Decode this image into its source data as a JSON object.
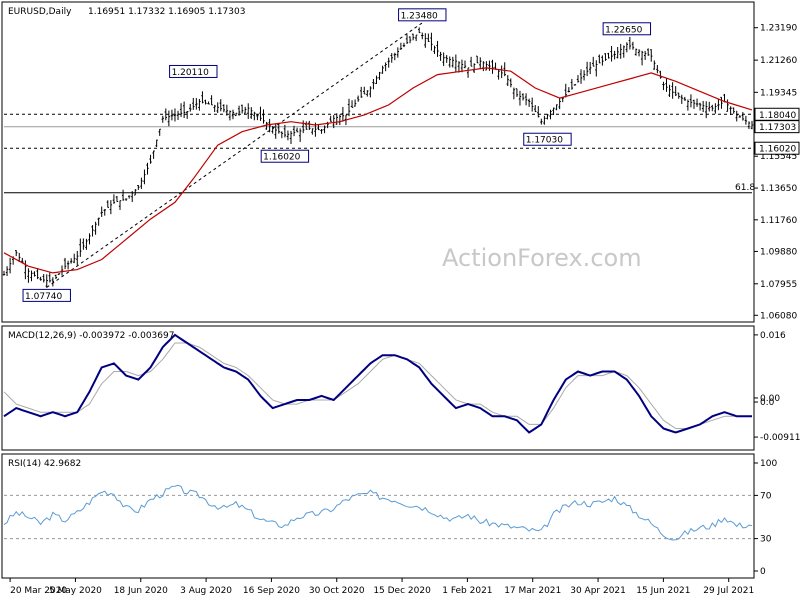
{
  "chart_data": [
    {
      "type": "candlestick",
      "title": "EURUSD,Daily",
      "ohlc_label": "1.16951 1.17332 1.16905 1.17303",
      "y_range": [
        1.058,
        1.246
      ],
      "y_ticks": [
        "1.23190",
        "1.21260",
        "1.19345",
        "1.17415",
        "1.15545",
        "1.13650",
        "1.11760",
        "1.09880",
        "1.07955",
        "1.06080"
      ],
      "x_ticks": [
        "20 Mar 2020",
        "5 May 2020",
        "18 Jun 2020",
        "3 Aug 2020",
        "16 Sep 2020",
        "30 Oct 2020",
        "15 Dec 2020",
        "1 Feb 2021",
        "17 Mar 2021",
        "30 Apr 2021",
        "15 Jun 2021",
        "29 Jul 2021"
      ],
      "price_boxes": [
        {
          "label": "1.18040",
          "value": 1.1804
        },
        {
          "label": "1.17303",
          "value": 1.17303
        },
        {
          "label": "1.16020",
          "value": 1.1602
        }
      ],
      "horizontal_lines": [
        {
          "value": 1.1804,
          "style": "dashed"
        },
        {
          "value": 1.173,
          "style": "solid-gray"
        },
        {
          "value": 1.1602,
          "style": "dashed"
        },
        {
          "value": 1.1337,
          "style": "solid",
          "label": "61.8"
        }
      ],
      "annotations": [
        {
          "label": "1.23480",
          "x_index": 137,
          "value": 1.2348
        },
        {
          "label": "1.20110",
          "x_index": 62,
          "value": 1.2011
        },
        {
          "label": "1.22650",
          "x_index": 204,
          "value": 1.2265
        },
        {
          "label": "1.17030",
          "x_index": 178,
          "value": 1.1703
        },
        {
          "label": "1.16020",
          "x_index": 92,
          "value": 1.1602
        },
        {
          "label": "1.07740",
          "x_index": 14,
          "value": 1.0774
        }
      ],
      "trendline": {
        "from": {
          "x_index": 14,
          "value": 1.0774
        },
        "to": {
          "x_index": 137,
          "value": 1.2348
        },
        "style": "dashed"
      },
      "ma_series_name": "",
      "ma_series": [
        [
          0,
          1.098
        ],
        [
          8,
          1.09
        ],
        [
          16,
          1.086
        ],
        [
          24,
          1.088
        ],
        [
          32,
          1.094
        ],
        [
          40,
          1.106
        ],
        [
          48,
          1.118
        ],
        [
          56,
          1.128
        ],
        [
          62,
          1.142
        ],
        [
          70,
          1.162
        ],
        [
          78,
          1.17
        ],
        [
          86,
          1.174
        ],
        [
          94,
          1.176
        ],
        [
          102,
          1.174
        ],
        [
          110,
          1.176
        ],
        [
          118,
          1.18
        ],
        [
          126,
          1.186
        ],
        [
          134,
          1.196
        ],
        [
          142,
          1.204
        ],
        [
          150,
          1.206
        ],
        [
          158,
          1.208
        ],
        [
          166,
          1.206
        ],
        [
          174,
          1.196
        ],
        [
          182,
          1.19
        ],
        [
          190,
          1.194
        ],
        [
          198,
          1.198
        ],
        [
          206,
          1.202
        ],
        [
          212,
          1.205
        ],
        [
          220,
          1.2
        ],
        [
          228,
          1.194
        ],
        [
          236,
          1.188
        ],
        [
          245,
          1.183
        ]
      ],
      "price_path": [
        [
          0,
          1.085
        ],
        [
          4,
          1.098
        ],
        [
          8,
          1.087
        ],
        [
          12,
          1.082
        ],
        [
          16,
          1.081
        ],
        [
          20,
          1.09
        ],
        [
          24,
          1.096
        ],
        [
          28,
          1.108
        ],
        [
          32,
          1.122
        ],
        [
          36,
          1.128
        ],
        [
          40,
          1.13
        ],
        [
          44,
          1.137
        ],
        [
          48,
          1.152
        ],
        [
          52,
          1.178
        ],
        [
          56,
          1.18
        ],
        [
          60,
          1.182
        ],
        [
          64,
          1.188
        ],
        [
          68,
          1.186
        ],
        [
          72,
          1.183
        ],
        [
          76,
          1.181
        ],
        [
          80,
          1.184
        ],
        [
          84,
          1.178
        ],
        [
          88,
          1.172
        ],
        [
          92,
          1.168
        ],
        [
          96,
          1.17
        ],
        [
          100,
          1.172
        ],
        [
          104,
          1.171
        ],
        [
          108,
          1.178
        ],
        [
          112,
          1.18
        ],
        [
          116,
          1.189
        ],
        [
          120,
          1.196
        ],
        [
          124,
          1.208
        ],
        [
          128,
          1.216
        ],
        [
          132,
          1.223
        ],
        [
          136,
          1.229
        ],
        [
          140,
          1.222
        ],
        [
          144,
          1.214
        ],
        [
          148,
          1.212
        ],
        [
          152,
          1.208
        ],
        [
          156,
          1.212
        ],
        [
          160,
          1.208
        ],
        [
          164,
          1.204
        ],
        [
          168,
          1.192
        ],
        [
          172,
          1.188
        ],
        [
          176,
          1.176
        ],
        [
          180,
          1.184
        ],
        [
          184,
          1.192
        ],
        [
          188,
          1.2
        ],
        [
          192,
          1.208
        ],
        [
          196,
          1.212
        ],
        [
          200,
          1.216
        ],
        [
          204,
          1.222
        ],
        [
          208,
          1.218
        ],
        [
          212,
          1.215
        ],
        [
          216,
          1.198
        ],
        [
          220,
          1.192
        ],
        [
          224,
          1.188
        ],
        [
          228,
          1.186
        ],
        [
          232,
          1.184
        ],
        [
          236,
          1.188
        ],
        [
          240,
          1.18
        ],
        [
          245,
          1.174
        ]
      ]
    },
    {
      "type": "line",
      "title": "MACD(12,26,9) -0.003972 -0.003697",
      "y_range": [
        -0.0118,
        0.0172
      ],
      "y_ticks": [
        "0.016",
        "0.00",
        "0.0",
        "-0.009116"
      ],
      "macd": [
        [
          0,
          -0.004
        ],
        [
          4,
          -0.002
        ],
        [
          8,
          -0.003
        ],
        [
          12,
          -0.004
        ],
        [
          16,
          -0.003
        ],
        [
          20,
          -0.004
        ],
        [
          24,
          -0.003
        ],
        [
          28,
          0.002
        ],
        [
          32,
          0.008
        ],
        [
          36,
          0.009
        ],
        [
          40,
          0.006
        ],
        [
          44,
          0.005
        ],
        [
          48,
          0.008
        ],
        [
          52,
          0.013
        ],
        [
          56,
          0.016
        ],
        [
          60,
          0.014
        ],
        [
          64,
          0.012
        ],
        [
          68,
          0.01
        ],
        [
          72,
          0.008
        ],
        [
          76,
          0.007
        ],
        [
          80,
          0.005
        ],
        [
          84,
          0.001
        ],
        [
          88,
          -0.002
        ],
        [
          92,
          -0.001
        ],
        [
          96,
          -0.0
        ],
        [
          100,
          0.0
        ],
        [
          104,
          0.001
        ],
        [
          108,
          0.0
        ],
        [
          112,
          0.003
        ],
        [
          116,
          0.006
        ],
        [
          120,
          0.009
        ],
        [
          124,
          0.011
        ],
        [
          128,
          0.011
        ],
        [
          132,
          0.01
        ],
        [
          136,
          0.008
        ],
        [
          140,
          0.004
        ],
        [
          144,
          0.001
        ],
        [
          148,
          -0.002
        ],
        [
          152,
          -0.001
        ],
        [
          156,
          -0.002
        ],
        [
          160,
          -0.004
        ],
        [
          164,
          -0.004
        ],
        [
          168,
          -0.005
        ],
        [
          172,
          -0.008
        ],
        [
          176,
          -0.006
        ],
        [
          180,
          0.0
        ],
        [
          184,
          0.005
        ],
        [
          188,
          0.007
        ],
        [
          192,
          0.006
        ],
        [
          196,
          0.007
        ],
        [
          200,
          0.007
        ],
        [
          204,
          0.005
        ],
        [
          208,
          0.001
        ],
        [
          212,
          -0.004
        ],
        [
          216,
          -0.007
        ],
        [
          220,
          -0.008
        ],
        [
          224,
          -0.007
        ],
        [
          228,
          -0.006
        ],
        [
          232,
          -0.004
        ],
        [
          236,
          -0.003
        ],
        [
          240,
          -0.004
        ],
        [
          245,
          -0.004
        ]
      ],
      "signal": [
        [
          0,
          0.002
        ],
        [
          4,
          -0.001
        ],
        [
          8,
          -0.002
        ],
        [
          12,
          -0.003
        ],
        [
          16,
          -0.003
        ],
        [
          20,
          -0.003
        ],
        [
          24,
          -0.003
        ],
        [
          28,
          -0.001
        ],
        [
          32,
          0.004
        ],
        [
          36,
          0.007
        ],
        [
          40,
          0.007
        ],
        [
          44,
          0.006
        ],
        [
          48,
          0.007
        ],
        [
          52,
          0.01
        ],
        [
          56,
          0.014
        ],
        [
          60,
          0.014
        ],
        [
          64,
          0.013
        ],
        [
          68,
          0.011
        ],
        [
          72,
          0.009
        ],
        [
          76,
          0.008
        ],
        [
          80,
          0.006
        ],
        [
          84,
          0.003
        ],
        [
          88,
          0.0
        ],
        [
          92,
          -0.001
        ],
        [
          96,
          -0.001
        ],
        [
          100,
          0.0
        ],
        [
          104,
          0.0
        ],
        [
          108,
          0.0
        ],
        [
          112,
          0.002
        ],
        [
          116,
          0.004
        ],
        [
          120,
          0.007
        ],
        [
          124,
          0.01
        ],
        [
          128,
          0.011
        ],
        [
          132,
          0.01
        ],
        [
          136,
          0.009
        ],
        [
          140,
          0.006
        ],
        [
          144,
          0.003
        ],
        [
          148,
          0.0
        ],
        [
          152,
          -0.001
        ],
        [
          156,
          -0.001
        ],
        [
          160,
          -0.003
        ],
        [
          164,
          -0.004
        ],
        [
          168,
          -0.004
        ],
        [
          172,
          -0.006
        ],
        [
          176,
          -0.006
        ],
        [
          180,
          -0.002
        ],
        [
          184,
          0.003
        ],
        [
          188,
          0.006
        ],
        [
          192,
          0.006
        ],
        [
          196,
          0.006
        ],
        [
          200,
          0.007
        ],
        [
          204,
          0.006
        ],
        [
          208,
          0.003
        ],
        [
          212,
          -0.001
        ],
        [
          216,
          -0.005
        ],
        [
          220,
          -0.007
        ],
        [
          224,
          -0.007
        ],
        [
          228,
          -0.006
        ],
        [
          232,
          -0.005
        ],
        [
          236,
          -0.004
        ],
        [
          240,
          -0.004
        ],
        [
          245,
          -0.004
        ]
      ]
    },
    {
      "type": "line",
      "title": "RSI(14) 42.9682",
      "y_range": [
        0,
        100
      ],
      "y_ticks": [
        "100",
        "70",
        "30",
        "0"
      ],
      "levels": [
        70,
        30
      ],
      "rsi": [
        [
          0,
          44
        ],
        [
          4,
          54
        ],
        [
          8,
          50
        ],
        [
          12,
          44
        ],
        [
          16,
          52
        ],
        [
          20,
          47
        ],
        [
          24,
          54
        ],
        [
          28,
          64
        ],
        [
          32,
          74
        ],
        [
          36,
          72
        ],
        [
          40,
          58
        ],
        [
          44,
          56
        ],
        [
          48,
          66
        ],
        [
          52,
          72
        ],
        [
          56,
          78
        ],
        [
          60,
          73
        ],
        [
          64,
          70
        ],
        [
          68,
          62
        ],
        [
          72,
          58
        ],
        [
          76,
          62
        ],
        [
          80,
          56
        ],
        [
          84,
          48
        ],
        [
          88,
          44
        ],
        [
          92,
          42
        ],
        [
          96,
          50
        ],
        [
          100,
          52
        ],
        [
          104,
          54
        ],
        [
          108,
          58
        ],
        [
          112,
          66
        ],
        [
          116,
          70
        ],
        [
          120,
          72
        ],
        [
          124,
          68
        ],
        [
          128,
          66
        ],
        [
          132,
          62
        ],
        [
          136,
          60
        ],
        [
          140,
          56
        ],
        [
          144,
          50
        ],
        [
          148,
          48
        ],
        [
          152,
          52
        ],
        [
          156,
          46
        ],
        [
          160,
          44
        ],
        [
          164,
          42
        ],
        [
          168,
          40
        ],
        [
          172,
          38
        ],
        [
          176,
          36
        ],
        [
          180,
          52
        ],
        [
          184,
          60
        ],
        [
          188,
          64
        ],
        [
          192,
          62
        ],
        [
          196,
          64
        ],
        [
          200,
          68
        ],
        [
          204,
          60
        ],
        [
          208,
          52
        ],
        [
          212,
          44
        ],
        [
          216,
          34
        ],
        [
          220,
          30
        ],
        [
          224,
          36
        ],
        [
          228,
          40
        ],
        [
          232,
          42
        ],
        [
          236,
          50
        ],
        [
          240,
          42
        ],
        [
          245,
          43
        ]
      ]
    }
  ],
  "watermark": "ActionForex.com",
  "colors": {
    "candles": "#000000",
    "ma": "#c00000",
    "macd": "#000080",
    "signal": "#aaaaaa",
    "rsi": "#5b9bd5",
    "box_border": "#000080"
  }
}
